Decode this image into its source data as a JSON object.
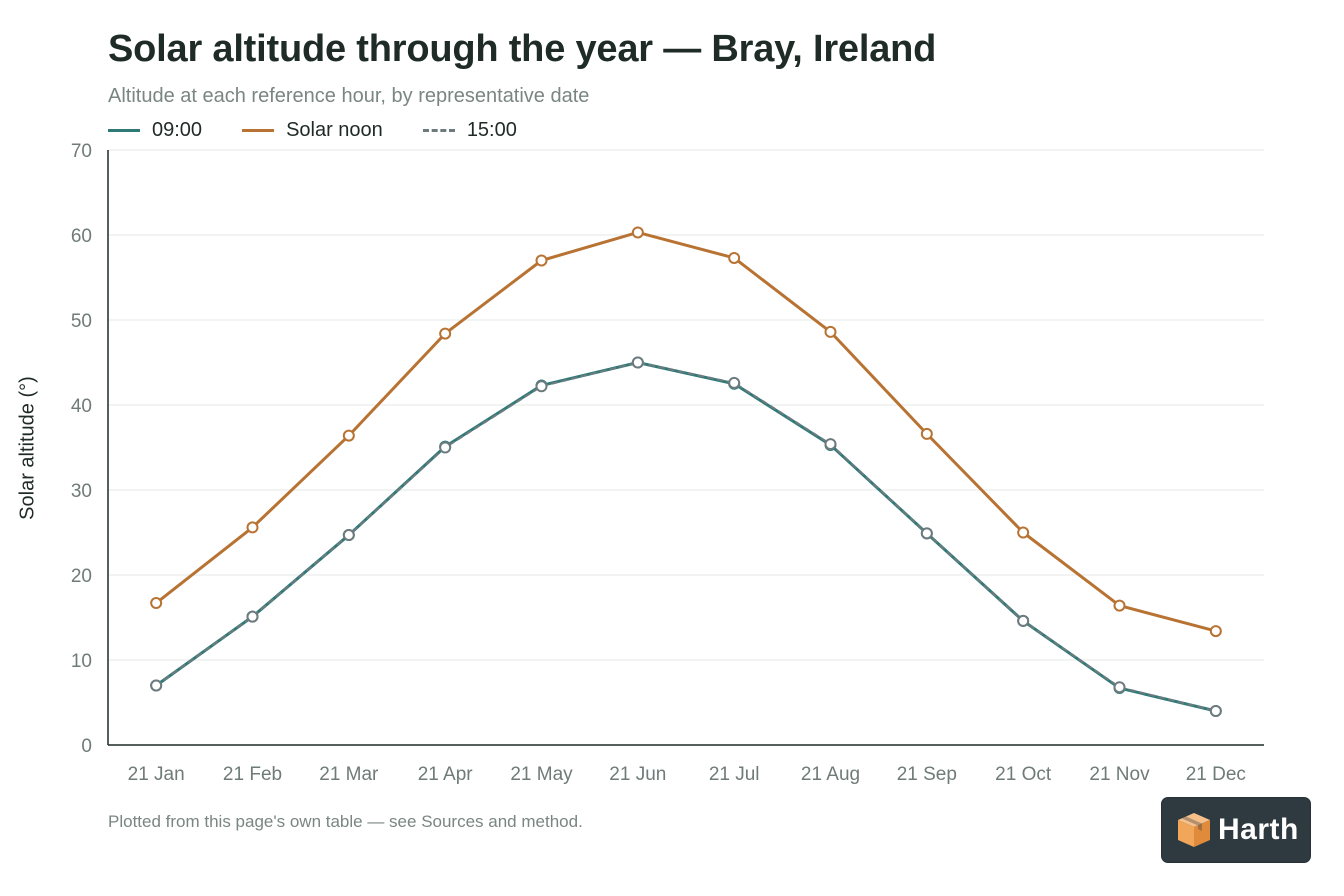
{
  "header": {
    "title": "Solar altitude through the year — Bray, Ireland",
    "subtitle": "Altitude at each reference hour, by representative date"
  },
  "footer": {
    "note": "Plotted from this page's own table — see Sources and method."
  },
  "logo": {
    "text": "Harth",
    "icon": "box-icon",
    "background": "#2f3a40",
    "accent": "#f2a65a"
  },
  "chart_data": {
    "type": "line",
    "title": "Solar altitude through the year — Bray, Ireland",
    "subtitle": "Altitude at each reference hour, by representative date",
    "xlabel": "",
    "ylabel": "Solar altitude (°)",
    "ylim": [
      0,
      70
    ],
    "yticks": [
      0,
      10,
      20,
      30,
      40,
      50,
      60,
      70
    ],
    "grid": true,
    "legend": "top-left",
    "categories": [
      "21 Jan",
      "21 Feb",
      "21 Mar",
      "21 Apr",
      "21 May",
      "21 Jun",
      "21 Jul",
      "21 Aug",
      "21 Sep",
      "21 Oct",
      "21 Nov",
      "21 Dec"
    ],
    "series": [
      {
        "name": "09:00",
        "color": "#2f7a78",
        "dash": false,
        "values": [
          7.0,
          15.1,
          24.7,
          35.1,
          42.3,
          45.0,
          42.5,
          35.3,
          24.9,
          14.6,
          6.7,
          4.0
        ]
      },
      {
        "name": "Solar noon",
        "color": "#b87333",
        "dash": false,
        "values": [
          16.7,
          25.6,
          36.4,
          48.4,
          57.0,
          60.3,
          57.3,
          48.6,
          36.6,
          25.0,
          16.4,
          13.4
        ]
      },
      {
        "name": "15:00",
        "color": "#6e7b7e",
        "dash": true,
        "values": [
          7.0,
          15.1,
          24.7,
          35.0,
          42.2,
          45.0,
          42.6,
          35.4,
          24.9,
          14.6,
          6.8,
          4.0
        ]
      }
    ]
  }
}
